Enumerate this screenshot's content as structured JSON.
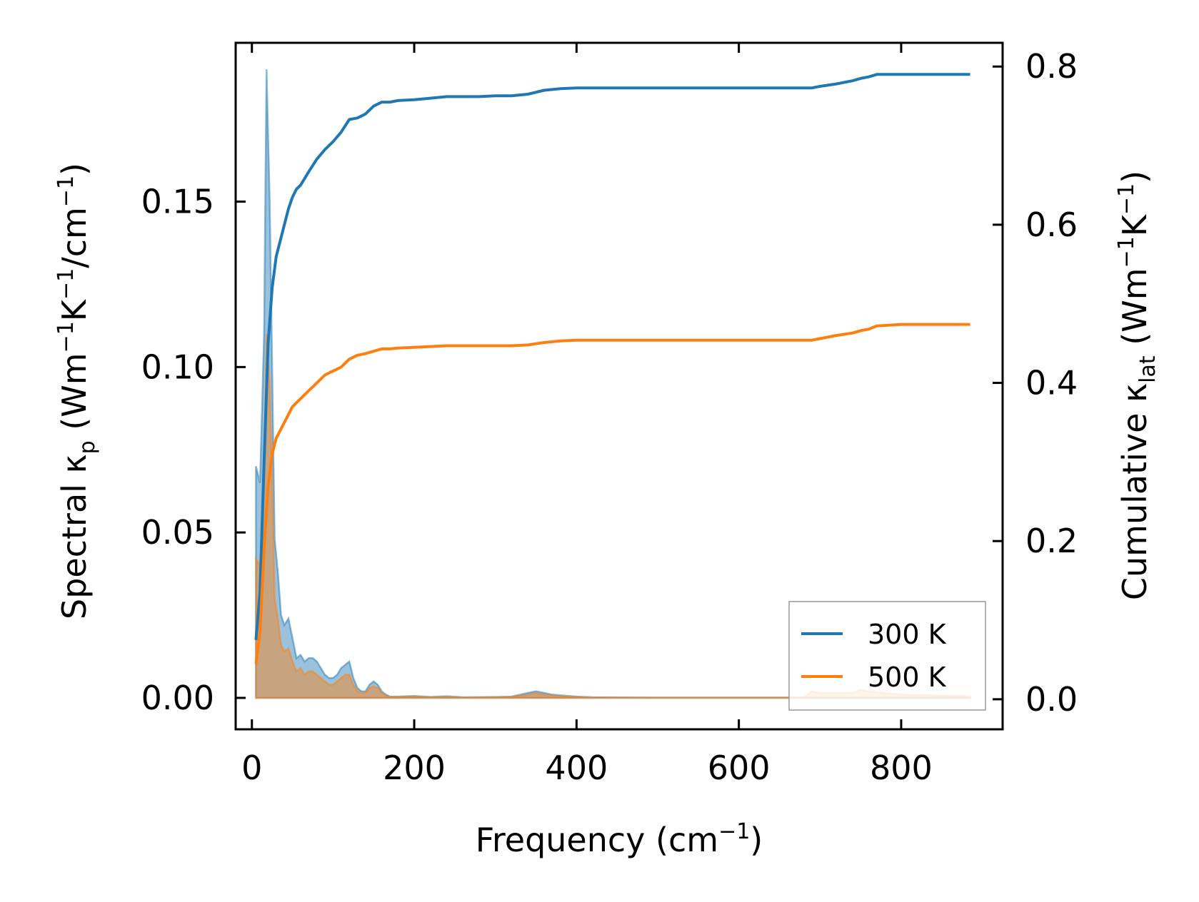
{
  "chart_data": {
    "type": "line",
    "x_axis": {
      "label": "Frequency (cm",
      "label_sup": "−1",
      "label_end": ")",
      "range": [
        -20,
        925
      ],
      "ticks": [
        0,
        200,
        400,
        600,
        800
      ],
      "tick_labels": [
        "0",
        "200",
        "400",
        "600",
        "800"
      ]
    },
    "y_left": {
      "label": "Spectral κ",
      "label_sub": "p",
      "label_units_a": " (Wm",
      "label_sup1": "−1",
      "label_units_b": "K",
      "label_sup2": "−1",
      "label_units_c": "/cm",
      "label_sup3": "−1",
      "label_end": ")",
      "range": [
        -0.0095,
        0.198
      ],
      "ticks": [
        0.0,
        0.05,
        0.1,
        0.15
      ],
      "tick_labels": [
        "0.00",
        "0.05",
        "0.10",
        "0.15"
      ]
    },
    "y_right": {
      "label": "Cumulative κ",
      "label_sub": "lat",
      "label_units_a": " (Wm",
      "label_sup1": "−1",
      "label_units_b": "K",
      "label_sup2": "−1",
      "label_end": ")",
      "range": [
        -0.038,
        0.83
      ],
      "ticks": [
        0.0,
        0.2,
        0.4,
        0.6,
        0.8
      ],
      "tick_labels": [
        "0.0",
        "0.2",
        "0.4",
        "0.6",
        "0.8"
      ]
    },
    "grid": false,
    "legend_position": "bottom-right",
    "series": [
      {
        "name": "300 K",
        "color": "#1f77b4",
        "cumulative": {
          "x": [
            5,
            10,
            15,
            20,
            25,
            30,
            35,
            40,
            45,
            50,
            55,
            60,
            70,
            80,
            90,
            100,
            110,
            120,
            130,
            140,
            150,
            160,
            170,
            180,
            200,
            220,
            240,
            260,
            280,
            300,
            320,
            340,
            360,
            380,
            400,
            450,
            500,
            550,
            600,
            650,
            690,
            700,
            720,
            740,
            750,
            760,
            770,
            800,
            850,
            885
          ],
          "y": [
            0.075,
            0.135,
            0.3,
            0.45,
            0.52,
            0.56,
            0.58,
            0.6,
            0.62,
            0.635,
            0.645,
            0.65,
            0.667,
            0.683,
            0.695,
            0.705,
            0.717,
            0.733,
            0.735,
            0.74,
            0.75,
            0.755,
            0.755,
            0.757,
            0.758,
            0.76,
            0.762,
            0.762,
            0.762,
            0.763,
            0.763,
            0.765,
            0.77,
            0.772,
            0.773,
            0.773,
            0.773,
            0.773,
            0.773,
            0.773,
            0.773,
            0.775,
            0.778,
            0.782,
            0.785,
            0.787,
            0.79,
            0.79,
            0.79,
            0.79
          ]
        },
        "spectral": {
          "x": [
            5,
            10,
            15,
            18,
            22,
            25,
            28,
            32,
            36,
            40,
            45,
            50,
            55,
            60,
            65,
            70,
            75,
            80,
            85,
            90,
            95,
            100,
            105,
            110,
            115,
            120,
            125,
            130,
            135,
            140,
            145,
            150,
            155,
            160,
            165,
            170,
            180,
            200,
            220,
            240,
            260,
            300,
            320,
            340,
            350,
            360,
            370,
            380,
            390,
            400,
            420,
            500,
            600,
            680,
            700,
            720,
            740,
            760,
            780,
            800,
            885
          ],
          "y": [
            0.07,
            0.065,
            0.11,
            0.19,
            0.15,
            0.1,
            0.048,
            0.038,
            0.025,
            0.022,
            0.024,
            0.018,
            0.012,
            0.013,
            0.011,
            0.012,
            0.012,
            0.011,
            0.009,
            0.007,
            0.006,
            0.006,
            0.007,
            0.009,
            0.01,
            0.011,
            0.006,
            0.003,
            0.002,
            0.002,
            0.004,
            0.005,
            0.004,
            0.002,
            0.001,
            0.0004,
            0.0004,
            0.0006,
            0.0003,
            0.0005,
            0.0002,
            0.0003,
            0.0004,
            0.0015,
            0.002,
            0.0015,
            0.001,
            0.0008,
            0.0006,
            0.0004,
            0.0002,
            0.0001,
            0.0001,
            0.0001,
            0.0001,
            0.0001,
            0.0001,
            0.0001,
            0.0001,
            0.0001,
            0.0001
          ]
        }
      },
      {
        "name": "500 K",
        "color": "#ff7f0e",
        "cumulative": {
          "x": [
            5,
            10,
            15,
            20,
            25,
            30,
            35,
            40,
            45,
            50,
            55,
            60,
            70,
            80,
            90,
            100,
            110,
            120,
            130,
            140,
            150,
            160,
            170,
            180,
            200,
            220,
            240,
            260,
            280,
            300,
            320,
            340,
            360,
            380,
            400,
            450,
            500,
            550,
            600,
            650,
            690,
            700,
            720,
            740,
            750,
            760,
            770,
            800,
            850,
            885
          ],
          "y": [
            0.045,
            0.085,
            0.19,
            0.27,
            0.31,
            0.33,
            0.34,
            0.35,
            0.36,
            0.37,
            0.375,
            0.38,
            0.39,
            0.4,
            0.41,
            0.415,
            0.42,
            0.43,
            0.435,
            0.437,
            0.44,
            0.443,
            0.443,
            0.444,
            0.445,
            0.446,
            0.447,
            0.447,
            0.447,
            0.447,
            0.447,
            0.448,
            0.451,
            0.453,
            0.454,
            0.454,
            0.454,
            0.454,
            0.454,
            0.454,
            0.454,
            0.456,
            0.46,
            0.463,
            0.466,
            0.468,
            0.472,
            0.474,
            0.474,
            0.474
          ]
        },
        "spectral": {
          "x": [
            5,
            10,
            15,
            18,
            22,
            25,
            28,
            32,
            36,
            40,
            45,
            50,
            55,
            60,
            65,
            70,
            75,
            80,
            85,
            90,
            95,
            100,
            105,
            110,
            115,
            120,
            125,
            130,
            135,
            140,
            145,
            150,
            155,
            160,
            165,
            170,
            180,
            200,
            220,
            240,
            260,
            300,
            320,
            340,
            350,
            360,
            370,
            380,
            390,
            400,
            420,
            500,
            600,
            680,
            690,
            700,
            720,
            740,
            750,
            760,
            780,
            800,
            885
          ],
          "y": [
            0.042,
            0.04,
            0.065,
            0.11,
            0.095,
            0.065,
            0.03,
            0.024,
            0.016,
            0.014,
            0.015,
            0.011,
            0.008,
            0.009,
            0.007,
            0.008,
            0.008,
            0.007,
            0.006,
            0.005,
            0.004,
            0.004,
            0.005,
            0.006,
            0.007,
            0.007,
            0.004,
            0.002,
            0.0015,
            0.0015,
            0.003,
            0.0035,
            0.003,
            0.0015,
            0.0008,
            0.0003,
            0.0003,
            0.0004,
            0.0002,
            0.0003,
            0.0001,
            0.0002,
            0.0003,
            0.001,
            0.0015,
            0.001,
            0.0007,
            0.0005,
            0.0004,
            0.0003,
            0.0001,
            0.0001,
            0.0001,
            0.0001,
            0.002,
            0.0015,
            0.0015,
            0.0015,
            0.0025,
            0.002,
            0.0015,
            0.001,
            0.0005
          ]
        }
      }
    ]
  }
}
